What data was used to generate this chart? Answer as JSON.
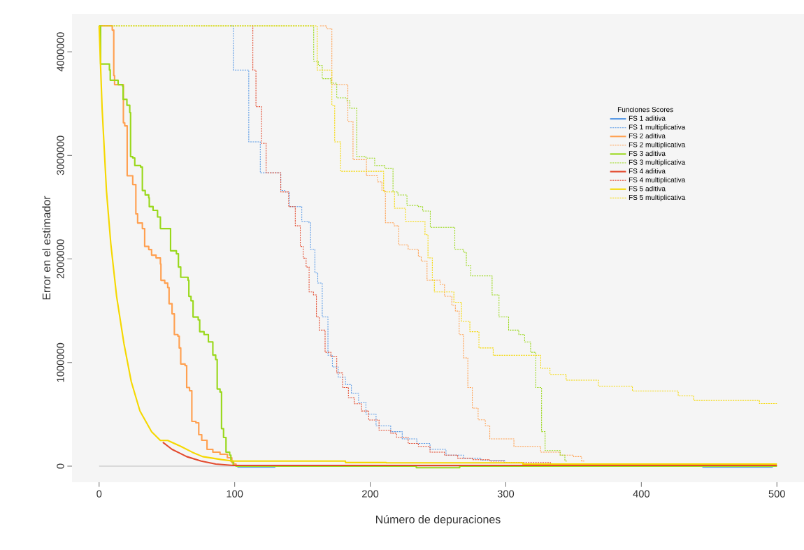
{
  "chart_data": {
    "type": "step",
    "xlabel": "Número de depuraciones",
    "ylabel": "Error en el estimador",
    "legend_title": "Funciones Scores",
    "legend": "right",
    "xlim": [
      -20,
      520
    ],
    "ylim": [
      -155000,
      4365000
    ],
    "xticks": [
      0,
      100,
      200,
      300,
      400,
      500
    ],
    "yticks": [
      0,
      1000000,
      2000000,
      3000000,
      4000000
    ],
    "ref_lines": [
      {
        "axis": "y",
        "value": 0,
        "color": "#bebebe"
      }
    ],
    "series": [
      {
        "name": "FS 1 aditiva",
        "type": "line",
        "line_style": "solid",
        "color": "#5b9be6",
        "x": [
          102,
          130,
          300,
          445,
          497
        ],
        "values": [
          -8000,
          -8000,
          null,
          -8000,
          -8000
        ]
      },
      {
        "name": "FS 1 multiplicativa",
        "line_style": "dotted",
        "color": "#5b9be6",
        "x": [
          97,
          99.0,
          110.4,
          118.9,
          134.0,
          137.0,
          140.4,
          149.5,
          154.8,
          156.0,
          159.2,
          161.3,
          164.6,
          168.8,
          172.1,
          176.4,
          181.8,
          186.1,
          191.4,
          196.8,
          204.3,
          215.1,
          223.6,
          234.4,
          244.1,
          255.9,
          268.8,
          281.7,
          298.9,
          300
        ],
        "values": [
          4250000,
          3824000,
          3130000,
          2831000,
          2661000,
          2647000,
          2504000,
          2363000,
          2349000,
          2093000,
          1866000,
          1767000,
          1440000,
          1071000,
          958000,
          858000,
          787000,
          703000,
          617000,
          503000,
          390000,
          333000,
          263000,
          219000,
          162000,
          106000,
          77000,
          57000,
          49000,
          49000
        ]
      },
      {
        "name": "FS 2 aditiva",
        "line_style": "solid",
        "color": "#ffa050",
        "x": [
          0,
          9.7,
          10.8,
          11.4,
          17.9,
          18.9,
          20.7,
          24.8,
          27.1,
          28.4,
          31.9,
          33.6,
          36.6,
          38.7,
          42.0,
          45.2,
          45.6,
          48.4,
          50.6,
          51.6,
          53.8,
          55.5,
          58.1,
          59.1,
          60.2,
          63.4,
          64.6,
          66.7,
          68.4,
          71.4,
          73.5,
          75.7,
          79.6,
          83.9,
          89.2,
          94.6,
          97.9,
          99.3,
          101,
          500
        ],
        "values": [
          4250000,
          4209000,
          3770000,
          3683000,
          3314000,
          3285000,
          2803000,
          2718000,
          2435000,
          2347000,
          2293000,
          2121000,
          2091000,
          2037000,
          2010000,
          1951000,
          1794000,
          1767000,
          1724000,
          1568000,
          1470000,
          1270000,
          1255000,
          1141000,
          986000,
          971000,
          759000,
          728000,
          432000,
          418000,
          304000,
          250000,
          162000,
          135000,
          115000,
          81000,
          35000,
          20000,
          5000,
          5000
        ]
      },
      {
        "name": "FS 2 multiplicativa",
        "line_style": "dotted",
        "color": "#ffa050",
        "x": [
          163,
          167.8,
          171.7,
          183.5,
          187.3,
          197.2,
          205.4,
          208.6,
          211.2,
          217.6,
          221.1,
          228.0,
          235.5,
          237.6,
          241.9,
          251.6,
          254.8,
          260.2,
          262.8,
          265.6,
          268.8,
          272.0,
          275.3,
          279.6,
          284.9,
          288.2,
          306.0,
          325.7,
          340.1,
          350.0,
          355.9,
          358
        ],
        "values": [
          4250000,
          4223000,
          3683000,
          3328000,
          2959000,
          2803000,
          2745000,
          2661000,
          2349000,
          2320000,
          2135000,
          2093000,
          2023000,
          1979000,
          1794000,
          1754000,
          1639000,
          1553000,
          1497000,
          1270000,
          1045000,
          759000,
          560000,
          447000,
          390000,
          263000,
          191000,
          135000,
          106000,
          92000,
          49000,
          49000
        ]
      },
      {
        "name": "FS 3 aditiva",
        "line_style": "solid",
        "color": "#99d81b",
        "x": [
          0,
          1.1,
          7.6,
          8.2,
          14.0,
          17.3,
          17.7,
          20.5,
          22.6,
          23.2,
          24.8,
          26.3,
          30.6,
          31.9,
          34.0,
          36.6,
          37.0,
          39.8,
          43.1,
          45.2,
          52.7,
          57.0,
          58.5,
          60.2,
          65.6,
          66.2,
          67.8,
          69.3,
          73.1,
          74.2,
          77.4,
          80.6,
          83.9,
          86.0,
          87.1,
          89.2,
          90.3,
          91.8,
          93.6,
          96.3,
          97.2,
          98.9,
          101,
          234,
          266,
          500
        ],
        "values": [
          4250000,
          3882000,
          3824000,
          3725000,
          3683000,
          3669000,
          3541000,
          3484000,
          3413000,
          2988000,
          2975000,
          2902000,
          2887000,
          2661000,
          2618000,
          2590000,
          2505000,
          2469000,
          2405000,
          2293000,
          2079000,
          2050000,
          1922000,
          1823000,
          1794000,
          1639000,
          1596000,
          1440000,
          1412000,
          1298000,
          1270000,
          1199000,
          1072000,
          1029000,
          745000,
          716000,
          362000,
          277000,
          135000,
          106000,
          49000,
          7000,
          0,
          -15000,
          0,
          0
        ]
      },
      {
        "name": "FS 3 multiplicativa",
        "line_style": "dotted",
        "color": "#99d81b",
        "x": [
          0,
          158.3,
          161.7,
          164.6,
          171.0,
          175.3,
          182.8,
          185.0,
          190.1,
          196.8,
          203.3,
          210.8,
          216.8,
          220.4,
          227.1,
          235.5,
          238.7,
          244.3,
          262.4,
          268.8,
          270.9,
          274.2,
          289.9,
          295.0,
          302.1,
          309.6,
          313.9,
          318.3,
          322.1,
          326.4,
          329.0,
          340.1,
          343.6,
          345
        ],
        "values": [
          4250000,
          3910000,
          3868000,
          3740000,
          3697000,
          3555000,
          3526000,
          3455000,
          2988000,
          2973000,
          2902000,
          2873000,
          2647000,
          2618000,
          2519000,
          2504000,
          2462000,
          2305000,
          2093000,
          2064000,
          1937000,
          1837000,
          1653000,
          1440000,
          1313000,
          1270000,
          1199000,
          1099000,
          759000,
          333000,
          150000,
          106000,
          49000,
          49000
        ]
      },
      {
        "name": "FS 4 aditiva",
        "type": "line",
        "line_style": "solid",
        "color": "#e34a2e",
        "x": [
          47.0,
          53.8,
          64.6,
          75.3,
          86.0,
          98.9,
          500
        ],
        "values": [
          230000,
          162000,
          92000,
          49000,
          20000,
          7000,
          7000
        ]
      },
      {
        "name": "FS 4 multiplicativa",
        "line_style": "dotted",
        "color": "#e34a2e",
        "x": [
          112.9,
          113.4,
          115.7,
          119.8,
          123.2,
          134.0,
          139.8,
          144.7,
          148.4,
          150.6,
          152.7,
          154.9,
          158.1,
          160.3,
          162.4,
          166.7,
          171.0,
          175.3,
          179.6,
          183.9,
          188.2,
          193.6,
          198.9,
          206.5,
          215.1,
          219.4,
          228.0,
          235.5,
          244.1,
          254.8,
          264.5,
          275.2,
          288.2,
          298.9,
          333,
          352
        ],
        "values": [
          4250000,
          3824000,
          3470000,
          3116000,
          2831000,
          2647000,
          2504000,
          2320000,
          2121000,
          2008000,
          1922000,
          1682000,
          1653000,
          1440000,
          1313000,
          1099000,
          1056000,
          900000,
          759000,
          661000,
          602000,
          532000,
          445000,
          347000,
          318000,
          277000,
          219000,
          191000,
          135000,
          106000,
          77000,
          63000,
          49000,
          35000,
          7000,
          7000
        ]
      },
      {
        "name": "FS 5 aditiva",
        "type": "line",
        "line_style": "solid",
        "color": "#f5d800",
        "x": [
          0,
          2.2,
          5.4,
          8.6,
          12.9,
          18.3,
          23.7,
          30.1,
          38.7,
          45.2,
          50.6,
          60.3,
          68.8,
          76.4,
          90.3,
          98.9,
          181.7,
          181.8,
          211.8,
          211.9,
          312.6,
          312.7,
          500
        ],
        "values": [
          4250000,
          3455000,
          2661000,
          2150000,
          1639000,
          1184000,
          816000,
          533000,
          333000,
          248000,
          248000,
          191000,
          134000,
          92000,
          63000,
          49000,
          49000,
          35000,
          35000,
          32000,
          32000,
          20000,
          20000
        ]
      },
      {
        "name": "FS 5 multiplicativa",
        "line_style": "dotted",
        "color": "#f5d800",
        "x": [
          0,
          160.9,
          171.7,
          173.8,
          178.1,
          209.9,
          217.9,
          226.0,
          240.4,
          242.6,
          245.8,
          247.3,
          261.7,
          267.3,
          273.5,
          280.2,
          290.7,
          325.8,
          332.6,
          344.5,
          368.3,
          393.4,
          427.2,
          438.6,
          487.1,
          500
        ],
        "values": [
          4250000,
          3824000,
          3484000,
          3130000,
          2846000,
          2647000,
          2490000,
          2363000,
          2235000,
          2010000,
          1794000,
          1682000,
          1582000,
          1398000,
          1298000,
          1141000,
          1070000,
          944000,
          886000,
          830000,
          773000,
          725000,
          678000,
          635000,
          604000,
          604000
        ]
      }
    ]
  }
}
